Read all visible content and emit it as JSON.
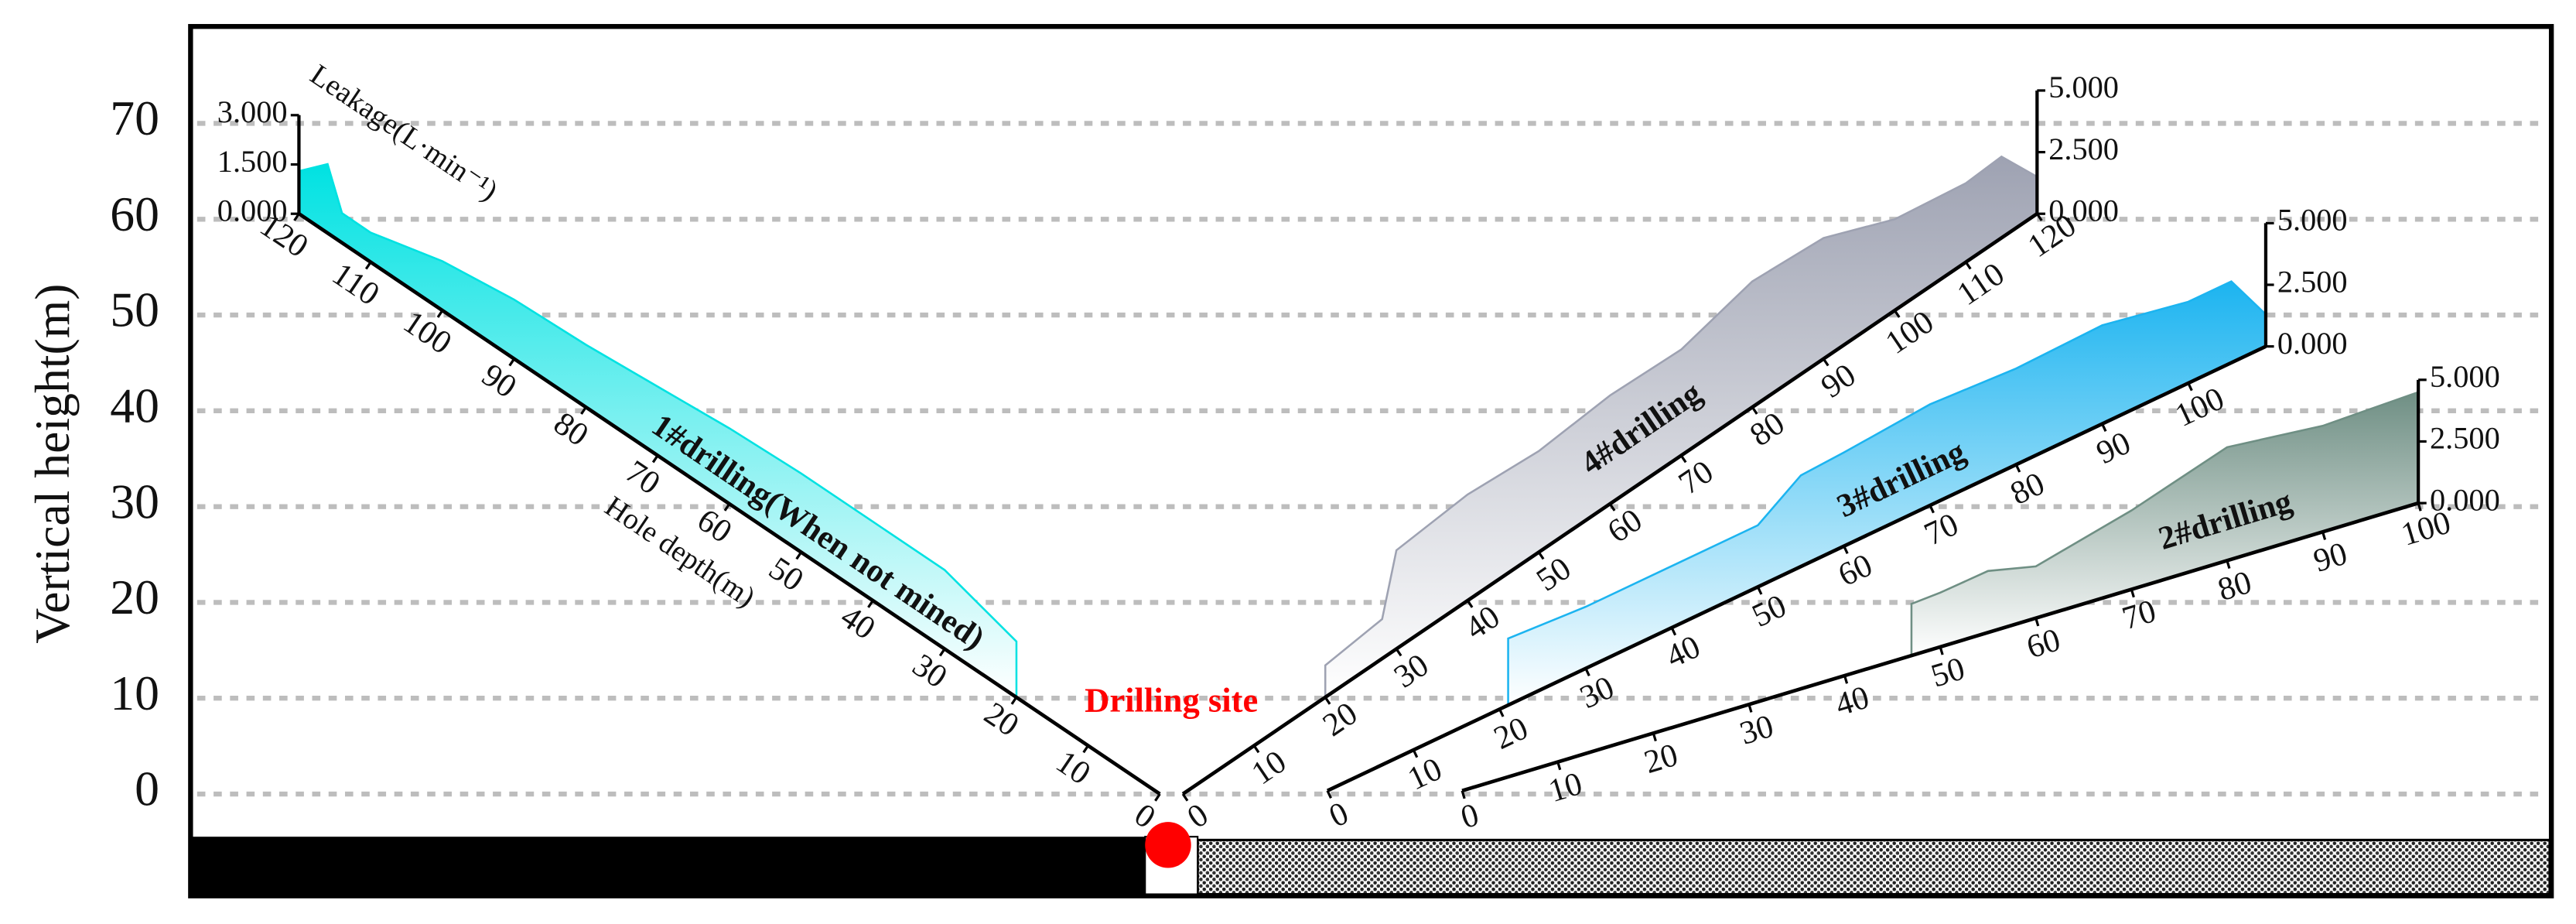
{
  "chart_data": {
    "type": "drilling-profile",
    "y_label": "Vertical height(m)",
    "ylim": [
      -10,
      80
    ],
    "yticks": [
      0,
      10,
      20,
      30,
      40,
      50,
      60,
      70
    ],
    "grid": true,
    "annotation": "Drilling site",
    "x_label": "Hole depth(m)",
    "leakage_label": "Leakage(L·min⁻¹)",
    "drillings": [
      {
        "name": "1#drilling(When not mined)",
        "color": "#00e2e2",
        "depth_ticks": [
          0,
          10,
          20,
          30,
          40,
          50,
          60,
          70,
          80,
          90,
          100,
          110,
          120
        ],
        "leakage_ticks": [
          {
            "value": 0,
            "label": "0.000"
          },
          {
            "value": 1.5,
            "label": "1.500"
          },
          {
            "value": 3,
            "label": "3.000"
          }
        ],
        "depth": [
          20,
          30,
          40,
          50,
          60,
          70,
          80,
          90,
          100,
          110,
          114,
          116,
          120
        ],
        "leakage": [
          1.7,
          2.4,
          2.4,
          2.4,
          2.3,
          2.1,
          1.9,
          1.8,
          1.5,
          0.9,
          0.9,
          2.1,
          1.3
        ]
      },
      {
        "name": "4#drilling",
        "color": "#9ea2b2",
        "depth_ticks": [
          0,
          10,
          20,
          30,
          40,
          50,
          60,
          70,
          80,
          90,
          100,
          110,
          120
        ],
        "leakage_ticks": [
          {
            "value": 0,
            "label": "0.000"
          },
          {
            "value": 2.5,
            "label": "2.500"
          },
          {
            "value": 5,
            "label": "5.000"
          }
        ],
        "depth": [
          20,
          28,
          30,
          40,
          50,
          60,
          70,
          80,
          90,
          100,
          110,
          115,
          120
        ],
        "leakage": [
          1.3,
          1.6,
          4.0,
          4.3,
          4.1,
          4.4,
          4.3,
          5.1,
          4.9,
          3.7,
          3.2,
          3.3,
          1.5
        ]
      },
      {
        "name": "3#drilling",
        "color": "#1cb4f0",
        "depth_ticks": [
          0,
          10,
          20,
          30,
          40,
          50,
          60,
          70,
          80,
          90,
          100
        ],
        "leakage_ticks": [
          {
            "value": 0,
            "label": "0.000"
          },
          {
            "value": 2.5,
            "label": "2.500"
          },
          {
            "value": 5,
            "label": "5.000"
          }
        ],
        "depth": [
          21,
          30,
          40,
          50,
          55,
          60,
          70,
          80,
          90,
          100,
          105,
          109
        ],
        "leakage": [
          2.7,
          2.5,
          2.5,
          2.5,
          3.7,
          3.8,
          4.1,
          3.9,
          4.0,
          3.3,
          3.3,
          1.3
        ]
      },
      {
        "name": "2#drilling",
        "color": "#6f8f84",
        "depth_ticks": [
          0,
          10,
          20,
          30,
          40,
          50,
          60,
          70,
          80,
          90,
          100
        ],
        "leakage_ticks": [
          {
            "value": 0,
            "label": "0.000"
          },
          {
            "value": 2.5,
            "label": "2.500"
          },
          {
            "value": 5,
            "label": "5.000"
          }
        ],
        "depth": [
          47,
          50,
          55,
          60,
          70,
          80,
          90,
          100
        ],
        "leakage": [
          2.1,
          2.2,
          2.5,
          2.1,
          3.2,
          4.6,
          4.3,
          4.5
        ]
      }
    ]
  }
}
